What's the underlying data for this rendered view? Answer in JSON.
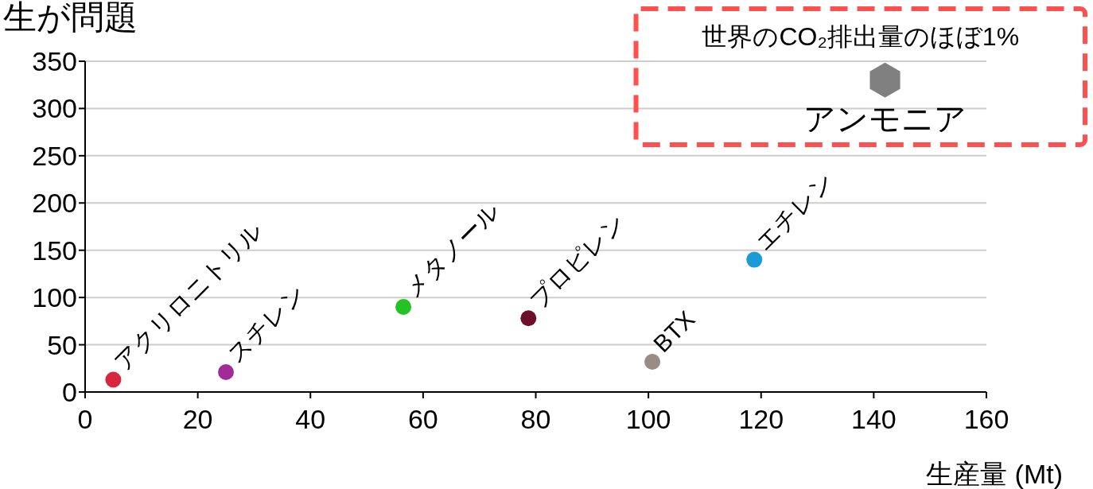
{
  "chart_data": {
    "type": "scatter",
    "title": "生が問題",
    "xlabel": "生産量 (Mt)",
    "xlim": [
      0,
      160
    ],
    "xticks": [
      0,
      20,
      40,
      60,
      80,
      100,
      120,
      140,
      160
    ],
    "ylim": [
      0,
      350
    ],
    "yticks": [
      0,
      50,
      100,
      150,
      200,
      250,
      300,
      350
    ],
    "grid": "y",
    "marker": "circle",
    "series": [
      {
        "name": "アクリロニトリル",
        "color": "#d7263d",
        "x": [
          5
        ],
        "values": [
          13
        ]
      },
      {
        "name": "スチレン",
        "color": "#a02b9b",
        "x": [
          25
        ],
        "values": [
          21
        ]
      },
      {
        "name": "メタノール",
        "color": "#22c322",
        "x": [
          56.5
        ],
        "values": [
          90
        ]
      },
      {
        "name": "プロピレン",
        "color": "#6b0f2a",
        "x": [
          78.7
        ],
        "values": [
          78
        ]
      },
      {
        "name": "BTX",
        "color": "#9a8c84",
        "x": [
          100.7
        ],
        "values": [
          32
        ]
      },
      {
        "name": "エチレン",
        "color": "#1a9ad6",
        "x": [
          118.8
        ],
        "values": [
          140
        ]
      },
      {
        "name": "アンモニア",
        "color": "#808080",
        "x": [
          142
        ],
        "values": [
          330
        ]
      }
    ],
    "annotations": [
      {
        "text": "世界のCO₂排出量のほぼ1%",
        "x": 142,
        "y": 330
      }
    ]
  }
}
